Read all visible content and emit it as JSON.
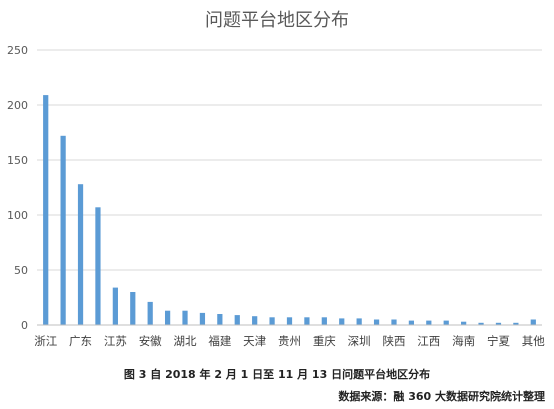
{
  "chart_data": {
    "type": "bar",
    "title": "问题平台地区分布",
    "xlabel": "",
    "ylabel": "",
    "ylim": [
      0,
      250
    ],
    "yticks": [
      "0",
      "50",
      "100",
      "150",
      "200",
      "250"
    ],
    "grid": true,
    "legend": "none",
    "bar_color": "#5b9bd5",
    "categories": [
      "浙江",
      "",
      "广东",
      "",
      "江苏",
      "",
      "安徽",
      "",
      "湖北",
      "",
      "福建",
      "",
      "天津",
      "",
      "贵州",
      "",
      "重庆",
      "",
      "深圳",
      "",
      "陕西",
      "",
      "江西",
      "",
      "海南",
      "",
      "宁夏",
      "",
      "其他"
    ],
    "values": [
      209,
      172,
      128,
      107,
      34,
      30,
      21,
      13,
      13,
      11,
      10,
      9,
      8,
      7,
      7,
      7,
      7,
      6,
      6,
      5,
      5,
      4,
      4,
      4,
      3,
      2,
      2,
      2,
      5
    ]
  },
  "caption": "图 3  自 2018 年 2 月 1 日至 11 月 13 日问题平台地区分布",
  "source": "数据来源：融 360 大数据研究院统计整理"
}
